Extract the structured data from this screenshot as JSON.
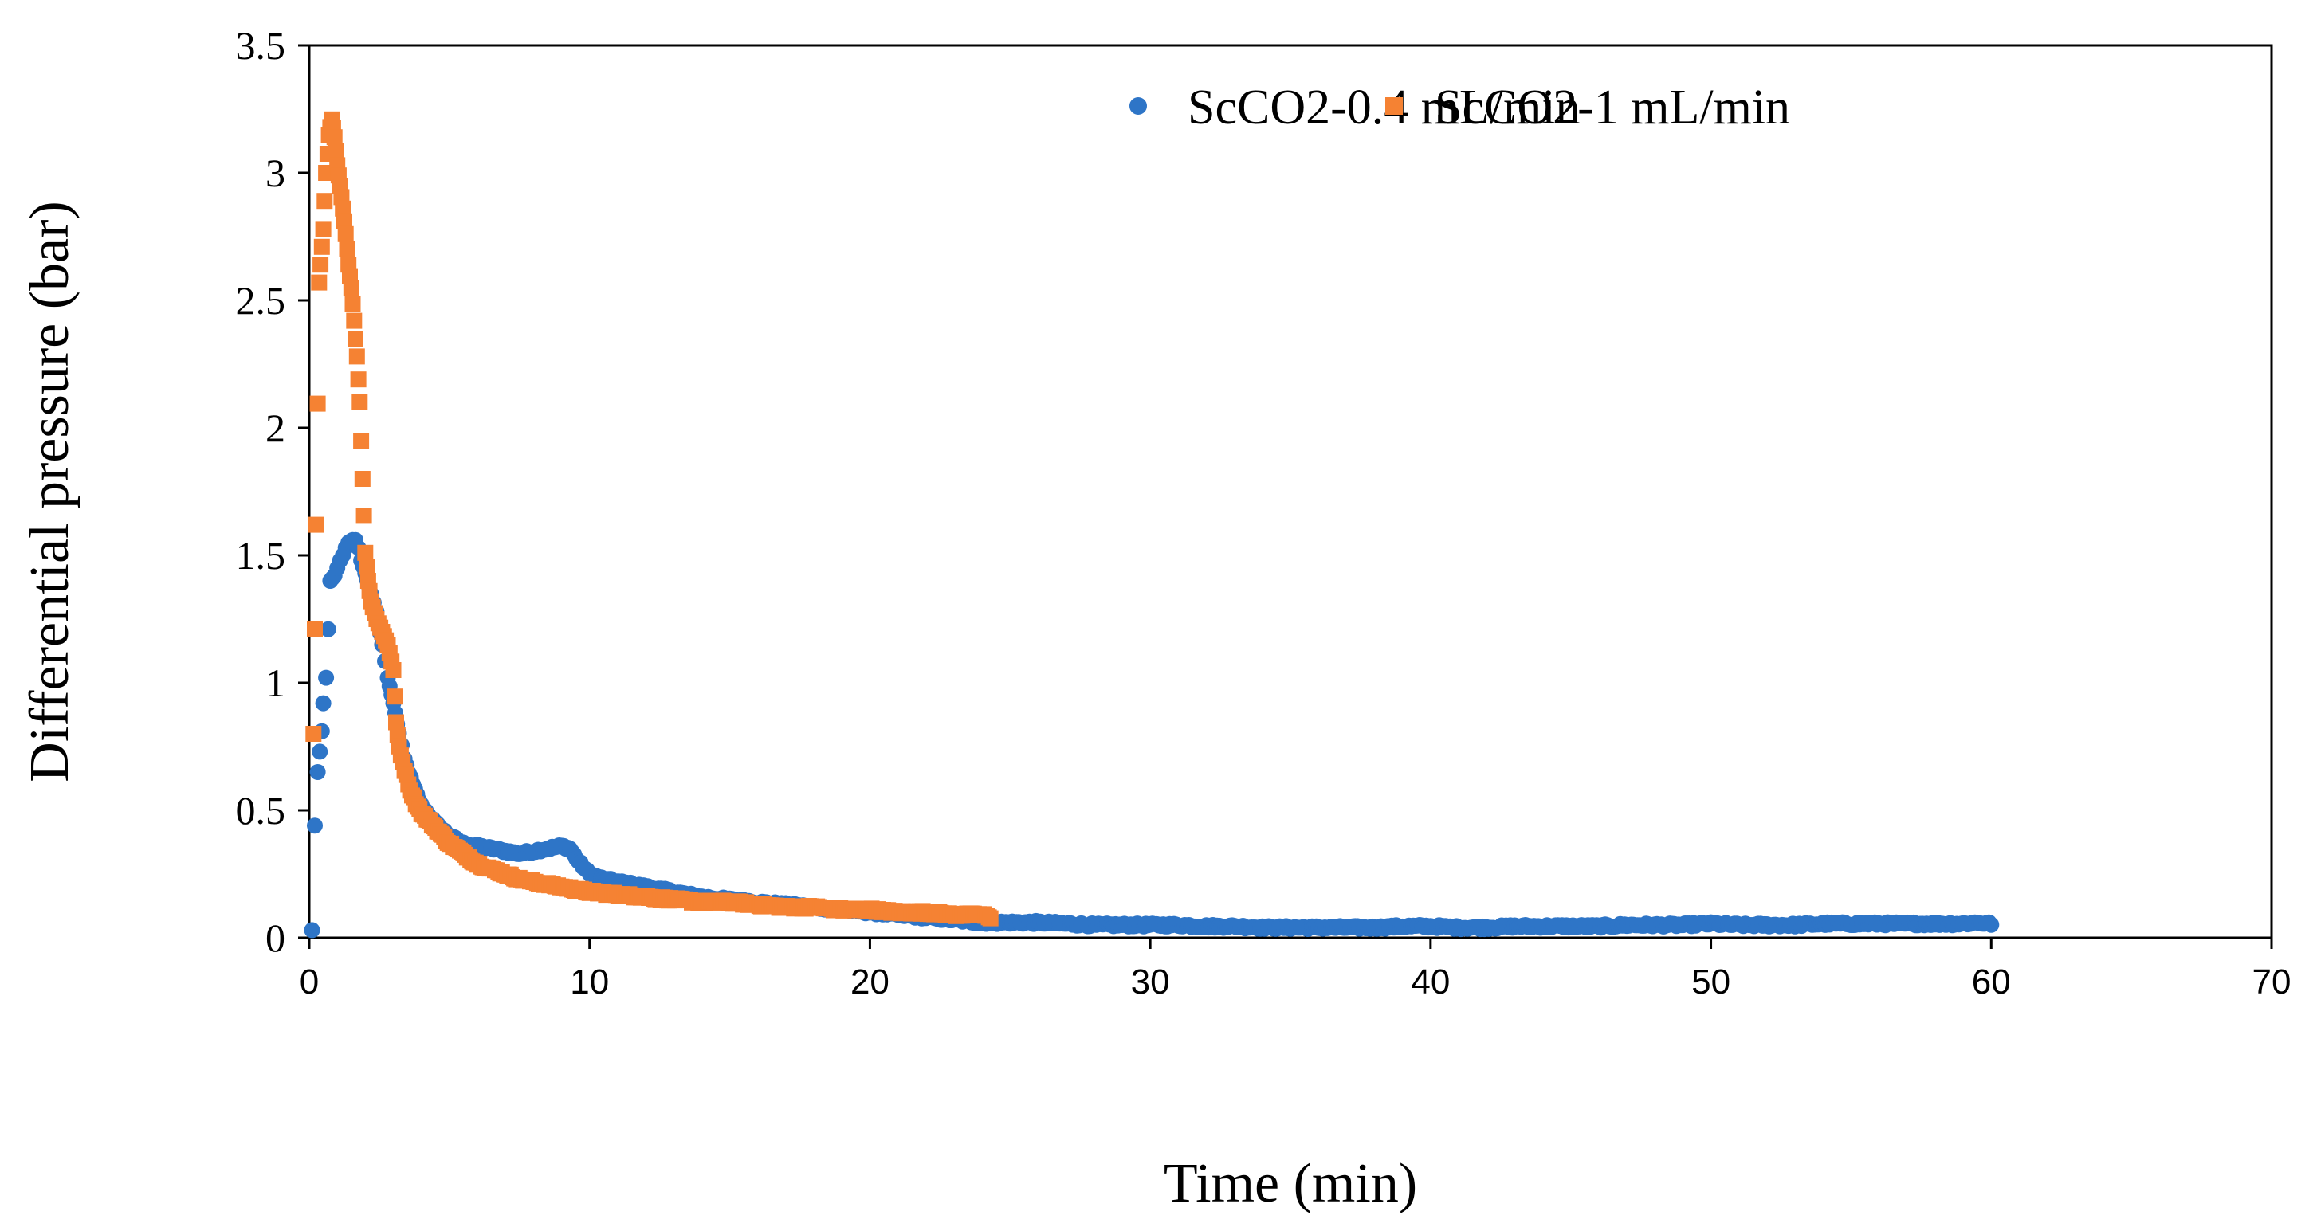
{
  "chart_data": {
    "type": "scatter",
    "title": "",
    "xlabel": "Time (min)",
    "ylabel": "Differential pressure (bar)",
    "xlim": [
      0,
      70
    ],
    "ylim": [
      0,
      3.5
    ],
    "x_ticks": [
      0,
      10,
      20,
      30,
      40,
      50,
      60,
      70
    ],
    "y_ticks": [
      "0",
      "0.5",
      "1",
      "1.5",
      "2",
      "2.5",
      "3",
      "3.5"
    ],
    "grid": false,
    "legend_position": "top-right",
    "series": [
      {
        "name": "ScCO2-0.4 mL/min",
        "color": "#2E75C7",
        "marker": "circle",
        "points": [
          [
            0.1,
            0.03
          ],
          [
            0.2,
            0.44
          ],
          [
            0.3,
            0.65
          ],
          [
            0.45,
            0.81
          ],
          [
            0.5,
            0.92
          ],
          [
            0.6,
            1.02
          ],
          [
            0.75,
            1.4
          ],
          [
            0.9,
            1.42
          ],
          [
            1.0,
            1.45
          ],
          [
            1.1,
            1.48
          ],
          [
            1.2,
            1.5
          ],
          [
            1.3,
            1.53
          ],
          [
            1.4,
            1.55
          ],
          [
            1.55,
            1.56
          ],
          [
            1.65,
            1.56
          ],
          [
            1.75,
            1.53
          ],
          [
            1.85,
            1.48
          ],
          [
            2.0,
            1.43
          ],
          [
            2.2,
            1.35
          ],
          [
            2.4,
            1.28
          ],
          [
            2.6,
            1.15
          ],
          [
            2.8,
            1.02
          ],
          [
            3.0,
            0.92
          ],
          [
            3.2,
            0.8
          ],
          [
            3.4,
            0.7
          ],
          [
            3.7,
            0.6
          ],
          [
            4.0,
            0.52
          ],
          [
            4.5,
            0.45
          ],
          [
            5.0,
            0.4
          ],
          [
            5.5,
            0.37
          ],
          [
            6.0,
            0.36
          ],
          [
            6.5,
            0.35
          ],
          [
            7.0,
            0.34
          ],
          [
            7.5,
            0.33
          ],
          [
            8.0,
            0.34
          ],
          [
            8.5,
            0.35
          ],
          [
            9.0,
            0.36
          ],
          [
            9.3,
            0.35
          ],
          [
            9.6,
            0.3
          ],
          [
            10.0,
            0.25
          ],
          [
            10.5,
            0.23
          ],
          [
            11.0,
            0.22
          ],
          [
            12.0,
            0.2
          ],
          [
            13.0,
            0.18
          ],
          [
            14.0,
            0.16
          ],
          [
            15.0,
            0.15
          ],
          [
            16.0,
            0.14
          ],
          [
            17.0,
            0.13
          ],
          [
            18.0,
            0.12
          ],
          [
            19.0,
            0.11
          ],
          [
            20.0,
            0.1
          ],
          [
            21.0,
            0.09
          ],
          [
            22.0,
            0.08
          ],
          [
            23.0,
            0.07
          ],
          [
            24.0,
            0.06
          ],
          [
            25.0,
            0.06
          ],
          [
            26.0,
            0.06
          ],
          [
            27.0,
            0.055
          ],
          [
            28.0,
            0.05
          ],
          [
            29.0,
            0.05
          ],
          [
            30.0,
            0.05
          ],
          [
            31.0,
            0.05
          ],
          [
            32.0,
            0.045
          ],
          [
            33.0,
            0.045
          ],
          [
            34.0,
            0.04
          ],
          [
            35.0,
            0.04
          ],
          [
            36.0,
            0.04
          ],
          [
            37.0,
            0.04
          ],
          [
            38.0,
            0.04
          ],
          [
            39.0,
            0.045
          ],
          [
            40.0,
            0.045
          ],
          [
            41.0,
            0.04
          ],
          [
            42.0,
            0.04
          ],
          [
            43.0,
            0.045
          ],
          [
            44.0,
            0.045
          ],
          [
            45.0,
            0.045
          ],
          [
            46.0,
            0.045
          ],
          [
            47.0,
            0.05
          ],
          [
            48.0,
            0.05
          ],
          [
            49.0,
            0.05
          ],
          [
            50.0,
            0.055
          ],
          [
            51.0,
            0.05
          ],
          [
            52.0,
            0.05
          ],
          [
            53.0,
            0.05
          ],
          [
            54.0,
            0.055
          ],
          [
            55.0,
            0.055
          ],
          [
            56.0,
            0.055
          ],
          [
            57.0,
            0.055
          ],
          [
            58.0,
            0.055
          ],
          [
            59.0,
            0.055
          ],
          [
            59.5,
            0.06
          ],
          [
            60.0,
            0.055
          ]
        ]
      },
      {
        "name": "ScCO2-1 mL/min",
        "color": "#F58233",
        "marker": "square",
        "points": [
          [
            0.15,
            0.8
          ],
          [
            0.25,
            1.62
          ],
          [
            0.35,
            2.57
          ],
          [
            0.5,
            2.78
          ],
          [
            0.6,
            3.0
          ],
          [
            0.7,
            3.15
          ],
          [
            0.8,
            3.21
          ],
          [
            0.9,
            3.14
          ],
          [
            1.0,
            3.03
          ],
          [
            1.1,
            2.95
          ],
          [
            1.2,
            2.86
          ],
          [
            1.3,
            2.76
          ],
          [
            1.4,
            2.64
          ],
          [
            1.5,
            2.55
          ],
          [
            1.6,
            2.42
          ],
          [
            1.7,
            2.28
          ],
          [
            1.8,
            2.1
          ],
          [
            1.9,
            1.8
          ],
          [
            2.0,
            1.51
          ],
          [
            2.1,
            1.4
          ],
          [
            2.2,
            1.32
          ],
          [
            2.4,
            1.25
          ],
          [
            2.6,
            1.2
          ],
          [
            2.8,
            1.15
          ],
          [
            3.0,
            1.05
          ],
          [
            3.1,
            0.84
          ],
          [
            3.2,
            0.75
          ],
          [
            3.4,
            0.66
          ],
          [
            3.6,
            0.58
          ],
          [
            3.8,
            0.53
          ],
          [
            4.0,
            0.49
          ],
          [
            4.5,
            0.43
          ],
          [
            5.0,
            0.37
          ],
          [
            5.5,
            0.33
          ],
          [
            6.0,
            0.29
          ],
          [
            6.5,
            0.27
          ],
          [
            7.0,
            0.25
          ],
          [
            7.5,
            0.23
          ],
          [
            8.0,
            0.22
          ],
          [
            8.5,
            0.21
          ],
          [
            9.0,
            0.2
          ],
          [
            9.5,
            0.19
          ],
          [
            10.0,
            0.18
          ],
          [
            11.0,
            0.17
          ],
          [
            12.0,
            0.16
          ],
          [
            13.0,
            0.15
          ],
          [
            14.0,
            0.14
          ],
          [
            15.0,
            0.14
          ],
          [
            16.0,
            0.13
          ],
          [
            17.0,
            0.12
          ],
          [
            18.0,
            0.12
          ],
          [
            19.0,
            0.11
          ],
          [
            20.0,
            0.11
          ],
          [
            21.0,
            0.1
          ],
          [
            22.0,
            0.1
          ],
          [
            23.0,
            0.09
          ],
          [
            24.0,
            0.09
          ],
          [
            24.3,
            0.08
          ]
        ]
      }
    ]
  }
}
